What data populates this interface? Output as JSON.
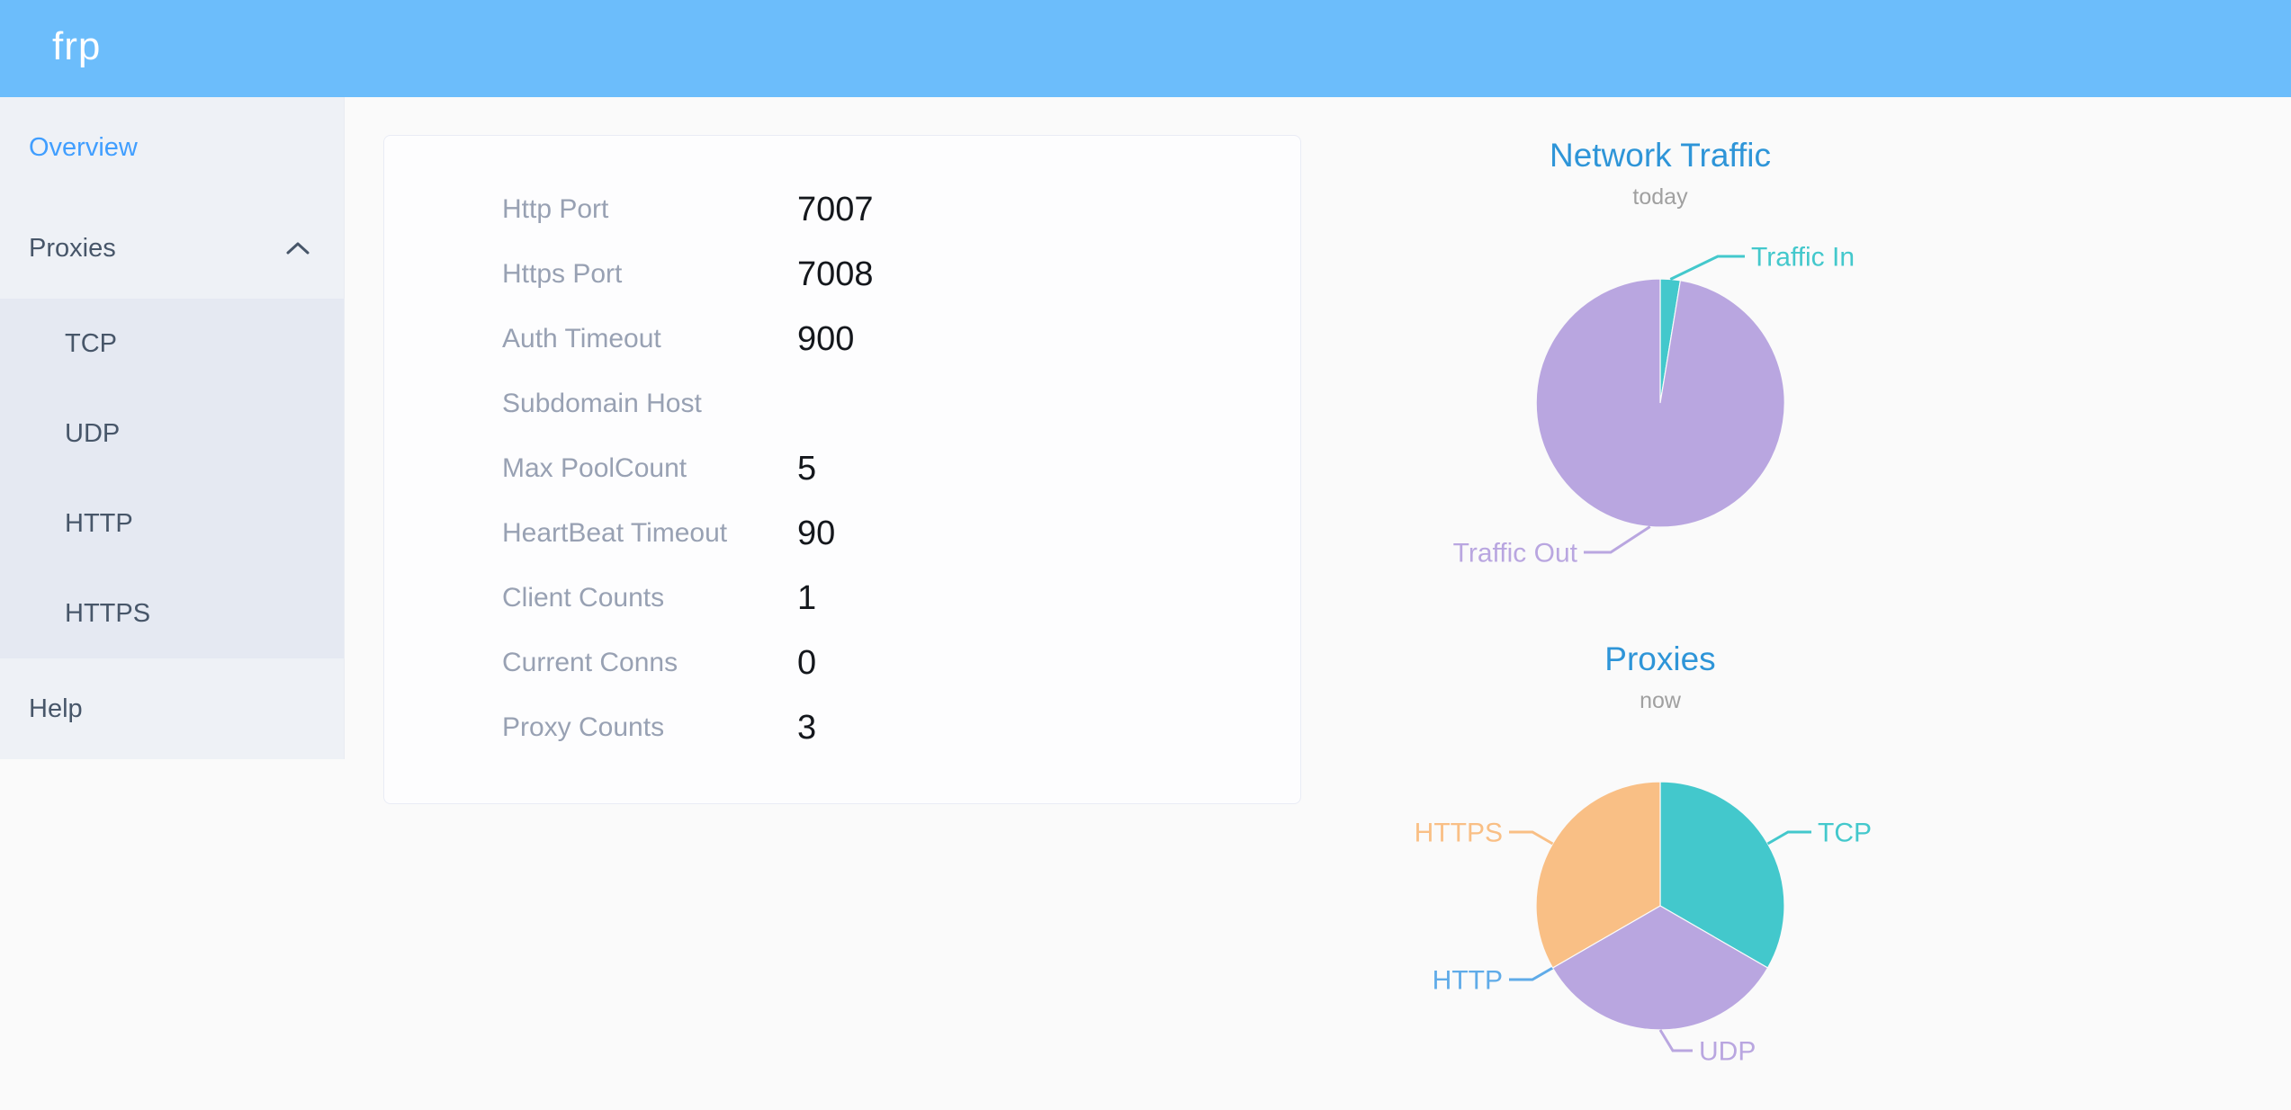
{
  "header": {
    "logo": "frp"
  },
  "sidebar": {
    "items": [
      {
        "id": "overview",
        "label": "Overview",
        "active": true
      },
      {
        "id": "proxies",
        "label": "Proxies",
        "expanded": true,
        "children": [
          "TCP",
          "UDP",
          "HTTP",
          "HTTPS"
        ]
      },
      {
        "id": "help",
        "label": "Help"
      }
    ]
  },
  "overview_card": {
    "rows": [
      {
        "label": "Http Port",
        "value": "7007"
      },
      {
        "label": "Https Port",
        "value": "7008"
      },
      {
        "label": "Auth Timeout",
        "value": "900"
      },
      {
        "label": "Subdomain Host",
        "value": ""
      },
      {
        "label": "Max PoolCount",
        "value": "5"
      },
      {
        "label": "HeartBeat Timeout",
        "value": "90"
      },
      {
        "label": "Client Counts",
        "value": "1"
      },
      {
        "label": "Current Conns",
        "value": "0"
      },
      {
        "label": "Proxy Counts",
        "value": "3"
      }
    ]
  },
  "chart_data": [
    {
      "type": "pie",
      "title": "Network Traffic",
      "subtitle": "today",
      "legend_position": "callout-labels",
      "series": [
        {
          "name": "Traffic In",
          "value": 2.6,
          "color": "#43c8cc"
        },
        {
          "name": "Traffic Out",
          "value": 97.4,
          "color": "#b9a6e0"
        }
      ],
      "value_unit": "percent-share (estimated from slice angles)"
    },
    {
      "type": "pie",
      "title": "Proxies",
      "subtitle": "now",
      "legend_position": "callout-labels",
      "series": [
        {
          "name": "TCP",
          "value": 1,
          "color": "#43c8cc"
        },
        {
          "name": "UDP",
          "value": 1,
          "color": "#b9a6e0"
        },
        {
          "name": "HTTP",
          "value": 0,
          "color": "#5fabe8"
        },
        {
          "name": "HTTPS",
          "value": 1,
          "color": "#f9bf85"
        }
      ],
      "value_unit": "proxy count (total matches Proxy Counts = 3)"
    }
  ],
  "colors": {
    "header_bg": "#6cbdfb",
    "sidebar_bg": "#eef1f6",
    "submenu_bg": "#e5e9f2",
    "sidebar_text": "#475669",
    "active_item_blue": "#409eff",
    "page_bg": "#fafafa",
    "card_bg": "#fdfdfe",
    "card_border": "#e9ecf5",
    "config_label_gray": "#98a1b3",
    "config_value_black": "#14171c",
    "chart_title_blue": "#2e95d8",
    "chart_subtitle_gray": "#a0a0a0",
    "pie_teal": "#43c8cc",
    "pie_purple": "#b9a6e0",
    "pie_orange": "#f9bf85",
    "pie_blue": "#5fabe8"
  }
}
